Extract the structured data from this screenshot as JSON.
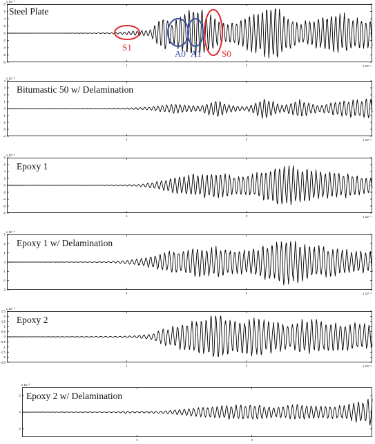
{
  "chart_data": [
    {
      "type": "line",
      "title": "Steel Plate",
      "ylim": [
        -8,
        8
      ],
      "yticks": [
        "8",
        "6",
        "4",
        "2",
        "0",
        "-2",
        "-4",
        "-6",
        "-8"
      ],
      "xticks": [
        "1",
        "2"
      ],
      "y_exponent": "x 10⁻³",
      "x_exponent": "x 10⁻⁴",
      "annotations": [
        {
          "label": "S1",
          "color": "#e0262a"
        },
        {
          "label": "A0",
          "color": "#3a4fa8"
        },
        {
          "label": "A1",
          "color": "#3a4fa8"
        },
        {
          "label": "S0",
          "color": "#e0262a"
        }
      ],
      "grid": false,
      "series": [
        {
          "envelope": {
            "x": [
              0,
              0.7,
              0.9,
              1.2,
              1.25,
              1.32,
              1.38,
              1.46,
              1.55,
              1.65,
              1.75,
              1.85,
              1.95,
              2.05,
              2.15,
              2.25,
              2.35,
              2.45,
              2.55,
              2.65,
              2.75,
              2.85,
              2.95,
              3.05
            ],
            "y": [
              0,
              0.05,
              0.2,
              1.0,
              3.5,
              5.5,
              3.0,
              6.0,
              8.0,
              6.5,
              4.0,
              3.0,
              4.0,
              5.5,
              7.0,
              8.0,
              5.0,
              3.0,
              4.5,
              5.0,
              6.0,
              5.5,
              4.5,
              4.0
            ]
          }
        }
      ]
    },
    {
      "type": "line",
      "title": "Bitumastic 50 w/ Delamination",
      "ylim": [
        -4,
        4
      ],
      "yticks": [
        "4",
        "3",
        "2",
        "1",
        "0",
        "-1",
        "-2",
        "-3",
        "-4"
      ],
      "xticks": [
        "1",
        "2"
      ],
      "y_exponent": "x 10⁻³",
      "x_exponent": "x 10⁻⁴",
      "grid": false,
      "series": [
        {
          "envelope": {
            "x": [
              0,
              0.5,
              0.8,
              1.0,
              1.2,
              1.4,
              1.6,
              1.75,
              1.85,
              2.0,
              2.15,
              2.3,
              2.45,
              2.6,
              2.8,
              3.0,
              3.05
            ],
            "y": [
              0,
              0.02,
              0.05,
              0.1,
              0.25,
              0.8,
              0.4,
              1.4,
              0.6,
              0.3,
              1.6,
              0.5,
              1.5,
              0.5,
              1.2,
              1.5,
              1.4
            ]
          }
        }
      ]
    },
    {
      "type": "line",
      "title": "Epoxy 1",
      "ylim": [
        -8,
        8
      ],
      "yticks": [
        "8",
        "6",
        "4",
        "2",
        "0",
        "-2",
        "-4",
        "-6",
        "-8"
      ],
      "xticks": [
        "1",
        "2"
      ],
      "y_exponent": "x 10⁻³",
      "x_exponent": "x 10⁻⁴",
      "grid": false,
      "series": [
        {
          "envelope": {
            "x": [
              0,
              0.6,
              0.9,
              1.1,
              1.2,
              1.35,
              1.55,
              1.75,
              1.9,
              2.05,
              2.2,
              2.3,
              2.45,
              2.6,
              2.8,
              3.05
            ],
            "y": [
              0,
              0.02,
              0.1,
              0.3,
              0.8,
              2.0,
              3.5,
              4.0,
              3.0,
              3.5,
              5.0,
              6.5,
              5.5,
              4.5,
              4.0,
              2.0
            ]
          }
        }
      ]
    },
    {
      "type": "line",
      "title": "Epoxy 1 w/ Delamination",
      "ylim": [
        -3,
        3
      ],
      "yticks": [
        "3",
        "2",
        "1",
        "0",
        "-1",
        "-2",
        "-3"
      ],
      "xticks": [
        "1",
        "2"
      ],
      "y_exponent": "x 10⁻³",
      "x_exponent": "x 10⁻⁴",
      "grid": false,
      "series": [
        {
          "envelope": {
            "x": [
              0,
              0.6,
              0.85,
              1.0,
              1.15,
              1.35,
              1.55,
              1.75,
              1.9,
              2.05,
              2.2,
              2.35,
              2.5,
              2.65,
              2.85,
              3.05
            ],
            "y": [
              0,
              0.02,
              0.05,
              0.2,
              0.5,
              1.2,
              1.6,
              1.8,
              1.3,
              1.6,
              2.2,
              2.7,
              2.0,
              1.8,
              1.4,
              1.2
            ]
          }
        }
      ]
    },
    {
      "type": "line",
      "title": "Epoxy 2",
      "ylim": [
        -2.5,
        2.5
      ],
      "yticks": [
        "2.5",
        "2",
        "1.5",
        "1",
        "0.5",
        "0",
        "-0.5",
        "-1",
        "-1.5",
        "-2",
        "-2.5"
      ],
      "xticks": [
        "1",
        "2"
      ],
      "y_exponent": "x 10⁻³",
      "x_exponent": "x 10⁻⁴",
      "grid": false,
      "series": [
        {
          "envelope": {
            "x": [
              0,
              0.6,
              0.9,
              1.05,
              1.2,
              1.3,
              1.45,
              1.6,
              1.75,
              1.9,
              2.05,
              2.2,
              2.35,
              2.5,
              2.65,
              2.8,
              3.05
            ],
            "y": [
              0,
              0.02,
              0.05,
              0.1,
              0.3,
              0.8,
              1.3,
              1.8,
              2.3,
              1.6,
              2.0,
              1.7,
              1.4,
              1.9,
              1.6,
              1.5,
              1.3
            ]
          }
        }
      ]
    },
    {
      "type": "line",
      "title": "Epoxy 2 w/  Delamination",
      "ylim": [
        -3,
        3
      ],
      "yticks": [
        "2",
        "0",
        "-2"
      ],
      "xticks": [
        "1",
        "2"
      ],
      "y_exponent": "x 10⁻³",
      "grid": false,
      "series": [
        {
          "envelope": {
            "x": [
              0,
              0.8,
              0.9,
              0.95,
              1.05,
              1.2,
              1.35,
              1.55,
              1.8,
              2.0,
              2.2,
              2.4,
              2.6,
              2.8,
              2.95,
              3.05
            ],
            "y": [
              0,
              0.05,
              0.15,
              0.1,
              0.1,
              0.15,
              0.3,
              0.6,
              0.9,
              1.0,
              0.7,
              1.0,
              0.8,
              0.9,
              1.4,
              1.8
            ]
          }
        }
      ]
    }
  ]
}
